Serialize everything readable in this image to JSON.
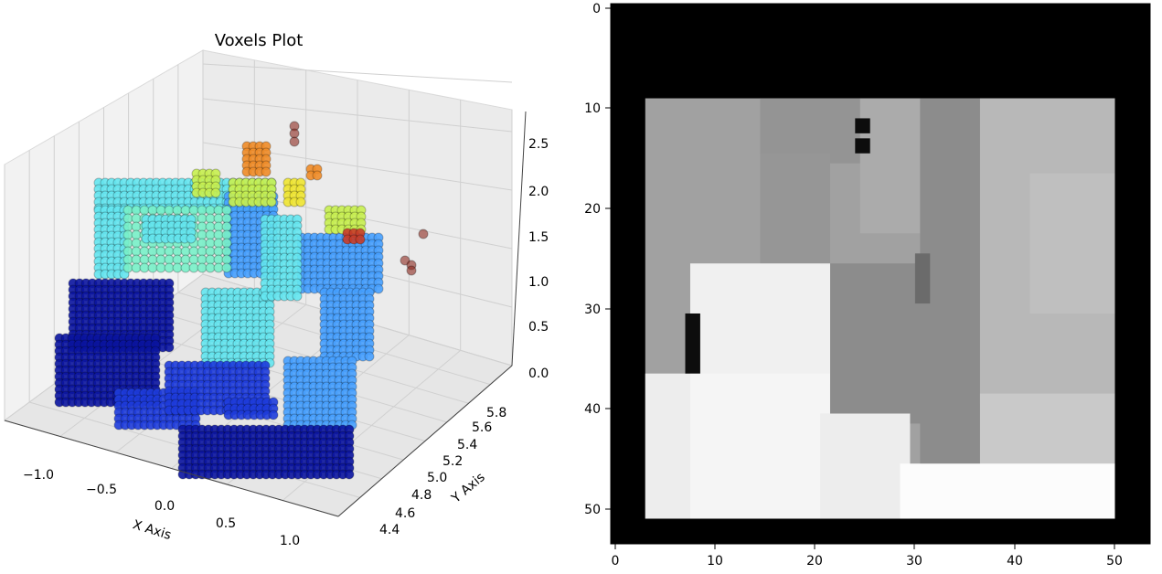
{
  "chart_data": [
    {
      "type": "scatter",
      "projection": "3d",
      "title": "Voxels Plot",
      "xlabel": "X Axis",
      "ylabel": "Y Axis",
      "zlabel": "",
      "xlim": [
        -1.25,
        1.25
      ],
      "ylim": [
        4.3,
        5.9
      ],
      "zlim": [
        0.0,
        2.7
      ],
      "x_ticks": [
        "−1.0",
        "−0.5",
        "0.0",
        "0.5",
        "1.0"
      ],
      "y_ticks": [
        "4.4",
        "4.6",
        "4.8",
        "5.0",
        "5.2",
        "5.4",
        "5.6",
        "5.8"
      ],
      "z_ticks": [
        "0.0",
        "0.5",
        "1.0",
        "1.5",
        "2.0",
        "2.5"
      ],
      "grid": true,
      "colormap": "jet",
      "colors": {
        "deep_blue": "#0a14a0",
        "blue": "#1e3cdc",
        "light_blue": "#46a0ff",
        "cyan": "#64e6f0",
        "green_cyan": "#78f0c8",
        "yellow_green": "#c8f050",
        "yellow": "#f0e632",
        "orange": "#f08c28",
        "red": "#c83c28",
        "dark_red": "#8c281e"
      }
    },
    {
      "type": "heatmap",
      "colormap": "gray",
      "x_ticks": [
        "0",
        "10",
        "20",
        "30",
        "40",
        "50"
      ],
      "y_ticks": [
        "0",
        "10",
        "20",
        "30",
        "40",
        "50"
      ],
      "xlim": [
        -0.5,
        53.5
      ],
      "ylim": [
        53.5,
        -0.5
      ],
      "background": "#000000",
      "note_regions_gray_levels": [
        {
          "label": "upper-left block",
          "value": 0.63
        },
        {
          "label": "upper-middle block",
          "value": 0.58
        },
        {
          "label": "middle column",
          "value": 0.67
        },
        {
          "label": "right column",
          "value": 0.72
        },
        {
          "label": "lower-left bright",
          "value": 0.94
        },
        {
          "label": "bottom strip",
          "value": 0.99
        }
      ]
    }
  ]
}
